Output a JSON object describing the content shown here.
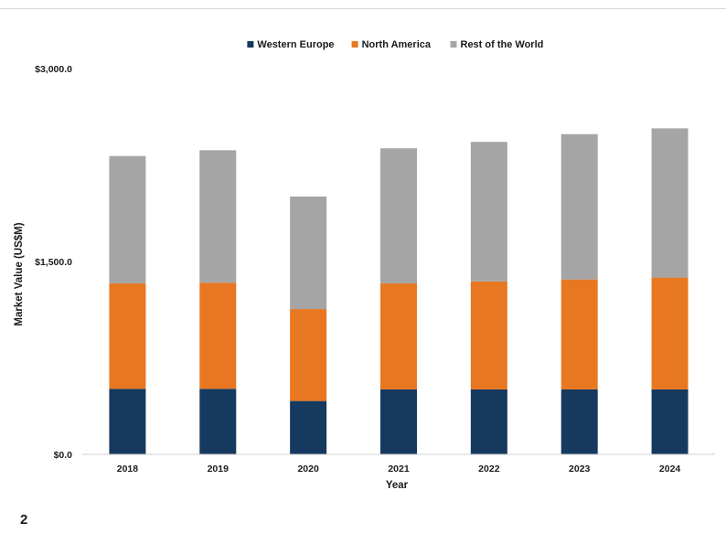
{
  "page_number": "2",
  "chart_data": {
    "type": "bar",
    "stacked": true,
    "categories": [
      "2018",
      "2019",
      "2020",
      "2021",
      "2022",
      "2023",
      "2024"
    ],
    "series": [
      {
        "name": "Western Europe",
        "color": "#163a5f",
        "values": [
          510,
          510,
          415,
          505,
          505,
          505,
          505
        ]
      },
      {
        "name": "North America",
        "color": "#e87722",
        "values": [
          820,
          825,
          715,
          825,
          840,
          855,
          870
        ]
      },
      {
        "name": "Rest of the World",
        "color": "#a5a5a5",
        "values": [
          990,
          1030,
          875,
          1050,
          1085,
          1130,
          1160
        ]
      }
    ],
    "xlabel": "Year",
    "ylabel": "Market Value (US$M)",
    "ylim": [
      0,
      3000
    ],
    "yticks": [
      0,
      1500,
      3000
    ],
    "ytick_labels": [
      "$0.0",
      "$1,500.0",
      "$3,000.0"
    ],
    "legend_position": "top-center",
    "grid": false
  }
}
